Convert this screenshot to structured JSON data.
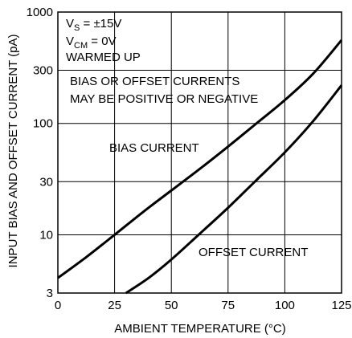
{
  "chart_data": {
    "type": "line",
    "title": "",
    "xlabel": "AMBIENT TEMPERATURE (°C)",
    "ylabel": "INPUT BIAS AND OFFSET CURRENT (pA)",
    "xlim": [
      0,
      125
    ],
    "ylim": [
      3,
      1000
    ],
    "yscale": "log",
    "grid": true,
    "x_ticks": [
      0,
      25,
      50,
      75,
      100,
      125
    ],
    "x_tick_labels": [
      "0",
      "25",
      "50",
      "75",
      "100",
      "125"
    ],
    "y_ticks": [
      3,
      10,
      30,
      100,
      300,
      1000
    ],
    "y_tick_labels": [
      "3",
      "10",
      "30",
      "100",
      "300",
      "1000"
    ],
    "conditions": {
      "vs": {
        "main": "V",
        "sub": "S",
        "rest": " = ±15V"
      },
      "vcm": {
        "main": "V",
        "sub": "CM",
        "rest": " = 0V"
      },
      "warmed": "WARMED UP"
    },
    "note_lines": [
      "BIAS OR OFFSET CURRENTS",
      "MAY BE POSITIVE OR NEGATIVE"
    ],
    "series": [
      {
        "name": "BIAS CURRENT",
        "x": [
          0,
          12.5,
          25,
          37.5,
          50,
          62.5,
          75,
          87.5,
          100,
          112.5,
          125
        ],
        "values": [
          4.1,
          6.3,
          10,
          16,
          25,
          39,
          62,
          100,
          162,
          280,
          560
        ]
      },
      {
        "name": "OFFSET CURRENT",
        "x": [
          30,
          40,
          50,
          62,
          75,
          87.5,
          100,
          112.5,
          125
        ],
        "values": [
          3,
          4.1,
          6,
          10,
          17.5,
          31,
          55,
          105,
          220
        ]
      }
    ]
  }
}
